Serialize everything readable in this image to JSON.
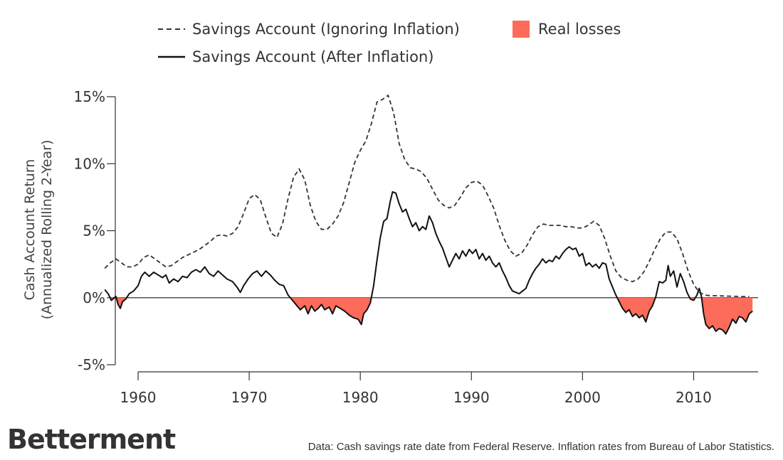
{
  "chart_data": {
    "type": "line",
    "ylabel_line1": "Cash Account Return",
    "ylabel_line2": "(Annualized Rolling 2-Year)",
    "xlabel": "",
    "xlim": [
      1955.9,
      2015.8
    ],
    "ylim": [
      -5,
      15
    ],
    "x_ticks": [
      1960,
      1970,
      1980,
      1990,
      2000,
      2010
    ],
    "y_ticks": [
      {
        "value": 15,
        "label": "15%"
      },
      {
        "value": 10,
        "label": "10%"
      },
      {
        "value": 5,
        "label": "5%"
      },
      {
        "value": 0,
        "label": "0%"
      },
      {
        "value": -5,
        "label": "-5%"
      }
    ],
    "legend": {
      "nominal": "Savings Account (Ignoring Inflation)",
      "real": "Savings Account (After Inflation)",
      "losses": "Real losses"
    },
    "colors": {
      "line": "#111111",
      "nominal": "#333333",
      "losses": "#fd6b5a",
      "axis": "#333333"
    },
    "series": [
      {
        "name": "Savings Account (Ignoring Inflation)",
        "style": "dashed",
        "points": [
          [
            1957.0,
            2.2
          ],
          [
            1957.5,
            2.6
          ],
          [
            1958.0,
            2.9
          ],
          [
            1958.5,
            2.6
          ],
          [
            1959.0,
            2.3
          ],
          [
            1959.5,
            2.3
          ],
          [
            1960.0,
            2.5
          ],
          [
            1960.5,
            3.0
          ],
          [
            1961.0,
            3.2
          ],
          [
            1961.5,
            2.9
          ],
          [
            1962.0,
            2.6
          ],
          [
            1962.5,
            2.3
          ],
          [
            1963.0,
            2.4
          ],
          [
            1963.5,
            2.7
          ],
          [
            1964.0,
            3.0
          ],
          [
            1964.5,
            3.2
          ],
          [
            1965.0,
            3.4
          ],
          [
            1965.5,
            3.6
          ],
          [
            1966.0,
            3.9
          ],
          [
            1966.5,
            4.2
          ],
          [
            1967.0,
            4.6
          ],
          [
            1967.5,
            4.7
          ],
          [
            1968.0,
            4.6
          ],
          [
            1968.5,
            4.8
          ],
          [
            1969.0,
            5.3
          ],
          [
            1969.5,
            6.3
          ],
          [
            1970.0,
            7.4
          ],
          [
            1970.5,
            7.7
          ],
          [
            1971.0,
            7.3
          ],
          [
            1971.5,
            6.0
          ],
          [
            1972.0,
            4.8
          ],
          [
            1972.5,
            4.5
          ],
          [
            1973.0,
            5.5
          ],
          [
            1973.5,
            7.4
          ],
          [
            1974.0,
            9.0
          ],
          [
            1974.5,
            9.6
          ],
          [
            1975.0,
            8.8
          ],
          [
            1975.5,
            6.9
          ],
          [
            1976.0,
            5.7
          ],
          [
            1976.5,
            5.1
          ],
          [
            1977.0,
            5.1
          ],
          [
            1977.5,
            5.5
          ],
          [
            1978.0,
            6.1
          ],
          [
            1978.5,
            7.1
          ],
          [
            1979.0,
            8.6
          ],
          [
            1979.5,
            10.1
          ],
          [
            1980.0,
            11.0
          ],
          [
            1980.5,
            11.7
          ],
          [
            1981.0,
            13.0
          ],
          [
            1981.5,
            14.6
          ],
          [
            1982.0,
            14.8
          ],
          [
            1982.5,
            15.1
          ],
          [
            1983.0,
            13.8
          ],
          [
            1983.5,
            11.5
          ],
          [
            1984.0,
            10.3
          ],
          [
            1984.5,
            9.7
          ],
          [
            1985.0,
            9.6
          ],
          [
            1985.5,
            9.4
          ],
          [
            1986.0,
            8.9
          ],
          [
            1986.5,
            8.1
          ],
          [
            1987.0,
            7.3
          ],
          [
            1987.5,
            6.9
          ],
          [
            1988.0,
            6.7
          ],
          [
            1988.5,
            6.9
          ],
          [
            1989.0,
            7.5
          ],
          [
            1989.5,
            8.2
          ],
          [
            1990.0,
            8.6
          ],
          [
            1990.5,
            8.7
          ],
          [
            1991.0,
            8.4
          ],
          [
            1991.5,
            7.6
          ],
          [
            1992.0,
            6.7
          ],
          [
            1992.5,
            5.4
          ],
          [
            1993.0,
            4.3
          ],
          [
            1993.5,
            3.5
          ],
          [
            1994.0,
            3.1
          ],
          [
            1994.5,
            3.3
          ],
          [
            1995.0,
            3.9
          ],
          [
            1995.5,
            4.7
          ],
          [
            1996.0,
            5.3
          ],
          [
            1996.5,
            5.5
          ],
          [
            1997.0,
            5.4
          ],
          [
            1997.5,
            5.4
          ],
          [
            1998.0,
            5.4
          ],
          [
            1998.5,
            5.3
          ],
          [
            1999.0,
            5.3
          ],
          [
            1999.5,
            5.2
          ],
          [
            2000.0,
            5.2
          ],
          [
            2000.5,
            5.4
          ],
          [
            2001.0,
            5.7
          ],
          [
            2001.5,
            5.4
          ],
          [
            2002.0,
            4.4
          ],
          [
            2002.5,
            3.1
          ],
          [
            2003.0,
            2.0
          ],
          [
            2003.5,
            1.5
          ],
          [
            2004.0,
            1.3
          ],
          [
            2004.5,
            1.2
          ],
          [
            2005.0,
            1.4
          ],
          [
            2005.5,
            1.9
          ],
          [
            2006.0,
            2.7
          ],
          [
            2006.5,
            3.6
          ],
          [
            2007.0,
            4.4
          ],
          [
            2007.5,
            4.9
          ],
          [
            2008.0,
            4.9
          ],
          [
            2008.5,
            4.4
          ],
          [
            2009.0,
            3.3
          ],
          [
            2009.5,
            2.0
          ],
          [
            2010.0,
            1.0
          ],
          [
            2010.5,
            0.4
          ],
          [
            2011.0,
            0.2
          ],
          [
            2011.5,
            0.15
          ],
          [
            2012.0,
            0.15
          ],
          [
            2013.0,
            0.12
          ],
          [
            2014.0,
            0.1
          ],
          [
            2015.0,
            0.08
          ]
        ]
      },
      {
        "name": "Savings Account (After Inflation)",
        "style": "solid",
        "points": [
          [
            1957.0,
            0.6
          ],
          [
            1957.3,
            0.3
          ],
          [
            1957.6,
            -0.2
          ],
          [
            1958.0,
            0.1
          ],
          [
            1958.2,
            -0.5
          ],
          [
            1958.4,
            -0.8
          ],
          [
            1958.6,
            -0.3
          ],
          [
            1958.9,
            -0.1
          ],
          [
            1959.2,
            0.3
          ],
          [
            1959.6,
            0.5
          ],
          [
            1960.0,
            0.9
          ],
          [
            1960.3,
            1.6
          ],
          [
            1960.6,
            1.9
          ],
          [
            1961.0,
            1.6
          ],
          [
            1961.4,
            1.9
          ],
          [
            1961.8,
            1.7
          ],
          [
            1962.2,
            1.5
          ],
          [
            1962.5,
            1.7
          ],
          [
            1962.8,
            1.1
          ],
          [
            1963.2,
            1.4
          ],
          [
            1963.6,
            1.2
          ],
          [
            1964.0,
            1.6
          ],
          [
            1964.4,
            1.5
          ],
          [
            1964.8,
            1.9
          ],
          [
            1965.2,
            2.1
          ],
          [
            1965.6,
            1.9
          ],
          [
            1966.0,
            2.3
          ],
          [
            1966.4,
            1.8
          ],
          [
            1966.8,
            1.6
          ],
          [
            1967.2,
            2.0
          ],
          [
            1967.6,
            1.7
          ],
          [
            1968.0,
            1.4
          ],
          [
            1968.5,
            1.2
          ],
          [
            1968.9,
            0.8
          ],
          [
            1969.2,
            0.4
          ],
          [
            1969.5,
            0.9
          ],
          [
            1969.9,
            1.4
          ],
          [
            1970.3,
            1.8
          ],
          [
            1970.7,
            2.0
          ],
          [
            1971.1,
            1.6
          ],
          [
            1971.5,
            2.0
          ],
          [
            1971.9,
            1.7
          ],
          [
            1972.3,
            1.3
          ],
          [
            1972.7,
            1.0
          ],
          [
            1973.1,
            0.9
          ],
          [
            1973.5,
            0.2
          ],
          [
            1973.8,
            -0.1
          ],
          [
            1974.2,
            -0.5
          ],
          [
            1974.6,
            -0.9
          ],
          [
            1975.0,
            -0.6
          ],
          [
            1975.3,
            -1.2
          ],
          [
            1975.6,
            -0.6
          ],
          [
            1975.9,
            -1.0
          ],
          [
            1976.2,
            -0.8
          ],
          [
            1976.5,
            -0.5
          ],
          [
            1976.8,
            -0.9
          ],
          [
            1977.2,
            -0.7
          ],
          [
            1977.5,
            -1.2
          ],
          [
            1977.8,
            -0.6
          ],
          [
            1978.2,
            -0.8
          ],
          [
            1978.6,
            -1.0
          ],
          [
            1979.0,
            -1.3
          ],
          [
            1979.4,
            -1.5
          ],
          [
            1979.8,
            -1.6
          ],
          [
            1980.1,
            -2.0
          ],
          [
            1980.3,
            -1.2
          ],
          [
            1980.6,
            -0.9
          ],
          [
            1980.9,
            -0.4
          ],
          [
            1981.2,
            0.9
          ],
          [
            1981.5,
            2.8
          ],
          [
            1981.8,
            4.5
          ],
          [
            1982.1,
            5.7
          ],
          [
            1982.4,
            5.9
          ],
          [
            1982.7,
            7.2
          ],
          [
            1982.9,
            7.9
          ],
          [
            1983.2,
            7.8
          ],
          [
            1983.5,
            7.0
          ],
          [
            1983.8,
            6.4
          ],
          [
            1984.1,
            6.6
          ],
          [
            1984.4,
            5.9
          ],
          [
            1984.7,
            5.3
          ],
          [
            1985.0,
            5.6
          ],
          [
            1985.3,
            5.0
          ],
          [
            1985.6,
            5.3
          ],
          [
            1985.9,
            5.1
          ],
          [
            1986.2,
            6.1
          ],
          [
            1986.5,
            5.6
          ],
          [
            1986.8,
            4.8
          ],
          [
            1987.1,
            4.2
          ],
          [
            1987.4,
            3.7
          ],
          [
            1987.7,
            3.0
          ],
          [
            1988.0,
            2.3
          ],
          [
            1988.3,
            2.8
          ],
          [
            1988.6,
            3.3
          ],
          [
            1988.9,
            2.9
          ],
          [
            1989.2,
            3.5
          ],
          [
            1989.5,
            3.1
          ],
          [
            1989.8,
            3.6
          ],
          [
            1990.1,
            3.3
          ],
          [
            1990.4,
            3.6
          ],
          [
            1990.7,
            2.9
          ],
          [
            1991.0,
            3.3
          ],
          [
            1991.3,
            2.8
          ],
          [
            1991.6,
            3.1
          ],
          [
            1991.9,
            2.6
          ],
          [
            1992.2,
            2.3
          ],
          [
            1992.5,
            2.6
          ],
          [
            1992.8,
            2.0
          ],
          [
            1993.1,
            1.5
          ],
          [
            1993.4,
            0.9
          ],
          [
            1993.7,
            0.5
          ],
          [
            1994.0,
            0.4
          ],
          [
            1994.3,
            0.3
          ],
          [
            1994.6,
            0.5
          ],
          [
            1994.9,
            0.7
          ],
          [
            1995.2,
            1.3
          ],
          [
            1995.5,
            1.8
          ],
          [
            1995.8,
            2.2
          ],
          [
            1996.1,
            2.5
          ],
          [
            1996.4,
            2.9
          ],
          [
            1996.7,
            2.6
          ],
          [
            1997.0,
            2.8
          ],
          [
            1997.3,
            2.7
          ],
          [
            1997.6,
            3.1
          ],
          [
            1997.9,
            2.9
          ],
          [
            1998.2,
            3.3
          ],
          [
            1998.5,
            3.6
          ],
          [
            1998.8,
            3.8
          ],
          [
            1999.1,
            3.6
          ],
          [
            1999.4,
            3.7
          ],
          [
            1999.7,
            3.1
          ],
          [
            2000.0,
            3.3
          ],
          [
            2000.3,
            2.4
          ],
          [
            2000.6,
            2.6
          ],
          [
            2000.9,
            2.3
          ],
          [
            2001.2,
            2.5
          ],
          [
            2001.5,
            2.2
          ],
          [
            2001.8,
            2.6
          ],
          [
            2002.1,
            2.5
          ],
          [
            2002.4,
            1.4
          ],
          [
            2002.7,
            0.8
          ],
          [
            2003.0,
            0.2
          ],
          [
            2003.3,
            -0.3
          ],
          [
            2003.6,
            -0.8
          ],
          [
            2003.9,
            -1.1
          ],
          [
            2004.2,
            -0.9
          ],
          [
            2004.5,
            -1.4
          ],
          [
            2004.8,
            -1.2
          ],
          [
            2005.1,
            -1.5
          ],
          [
            2005.4,
            -1.3
          ],
          [
            2005.7,
            -1.8
          ],
          [
            2006.0,
            -1.0
          ],
          [
            2006.3,
            -0.6
          ],
          [
            2006.6,
            0.1
          ],
          [
            2006.9,
            1.2
          ],
          [
            2007.2,
            1.1
          ],
          [
            2007.5,
            1.3
          ],
          [
            2007.7,
            2.4
          ],
          [
            2007.9,
            1.6
          ],
          [
            2008.2,
            2.0
          ],
          [
            2008.5,
            0.8
          ],
          [
            2008.8,
            1.8
          ],
          [
            2009.1,
            1.2
          ],
          [
            2009.4,
            0.4
          ],
          [
            2009.7,
            -0.1
          ],
          [
            2010.0,
            -0.2
          ],
          [
            2010.3,
            0.2
          ],
          [
            2010.5,
            0.7
          ],
          [
            2010.7,
            0.1
          ],
          [
            2010.9,
            -1.2
          ],
          [
            2011.1,
            -2.0
          ],
          [
            2011.4,
            -2.3
          ],
          [
            2011.7,
            -2.1
          ],
          [
            2012.0,
            -2.5
          ],
          [
            2012.3,
            -2.3
          ],
          [
            2012.6,
            -2.4
          ],
          [
            2012.9,
            -2.7
          ],
          [
            2013.2,
            -2.2
          ],
          [
            2013.5,
            -1.6
          ],
          [
            2013.8,
            -1.9
          ],
          [
            2014.1,
            -1.4
          ],
          [
            2014.4,
            -1.5
          ],
          [
            2014.7,
            -1.8
          ],
          [
            2015.0,
            -1.2
          ],
          [
            2015.3,
            -1.0
          ]
        ]
      }
    ]
  },
  "footer": {
    "brand": "Betterment",
    "source": "Data: Cash savings rate date from Federal Reserve. Inflation rates from Bureau of Labor Statistics."
  }
}
